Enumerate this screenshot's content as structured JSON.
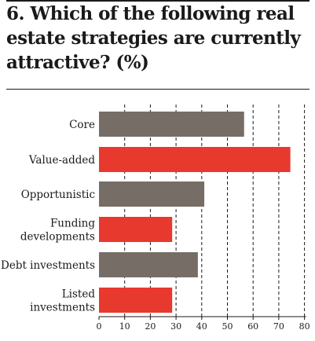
{
  "chart_data": {
    "type": "bar",
    "orientation": "horizontal",
    "title": "6. Which of the following real estate strategies are currently attractive? (%)",
    "categories": [
      "Core",
      "Value-added",
      "Opportunistic",
      "Funding developments",
      "Debt investments",
      "Listed investments"
    ],
    "category_lines": [
      [
        "Core"
      ],
      [
        "Value-added"
      ],
      [
        "Opportunistic"
      ],
      [
        "Funding",
        "developments"
      ],
      [
        "Debt investments"
      ],
      [
        "Listed",
        "investments"
      ]
    ],
    "values": [
      56.5,
      74.5,
      41,
      28.5,
      38.5,
      28.5
    ],
    "bar_colors": [
      "#766d66",
      "#e8392e",
      "#766d66",
      "#e8392e",
      "#766d66",
      "#e8392e"
    ],
    "xlim": [
      0,
      80
    ],
    "xticks": [
      0,
      10,
      20,
      30,
      40,
      50,
      60,
      70,
      80
    ],
    "xlabel": "",
    "ylabel": "",
    "grid": "vertical dashed",
    "legend": "none"
  },
  "colors": {
    "bar_gray": "#766d66",
    "bar_red": "#e8392e",
    "text": "#1a1a1a",
    "grid": "#1a1a1a"
  }
}
